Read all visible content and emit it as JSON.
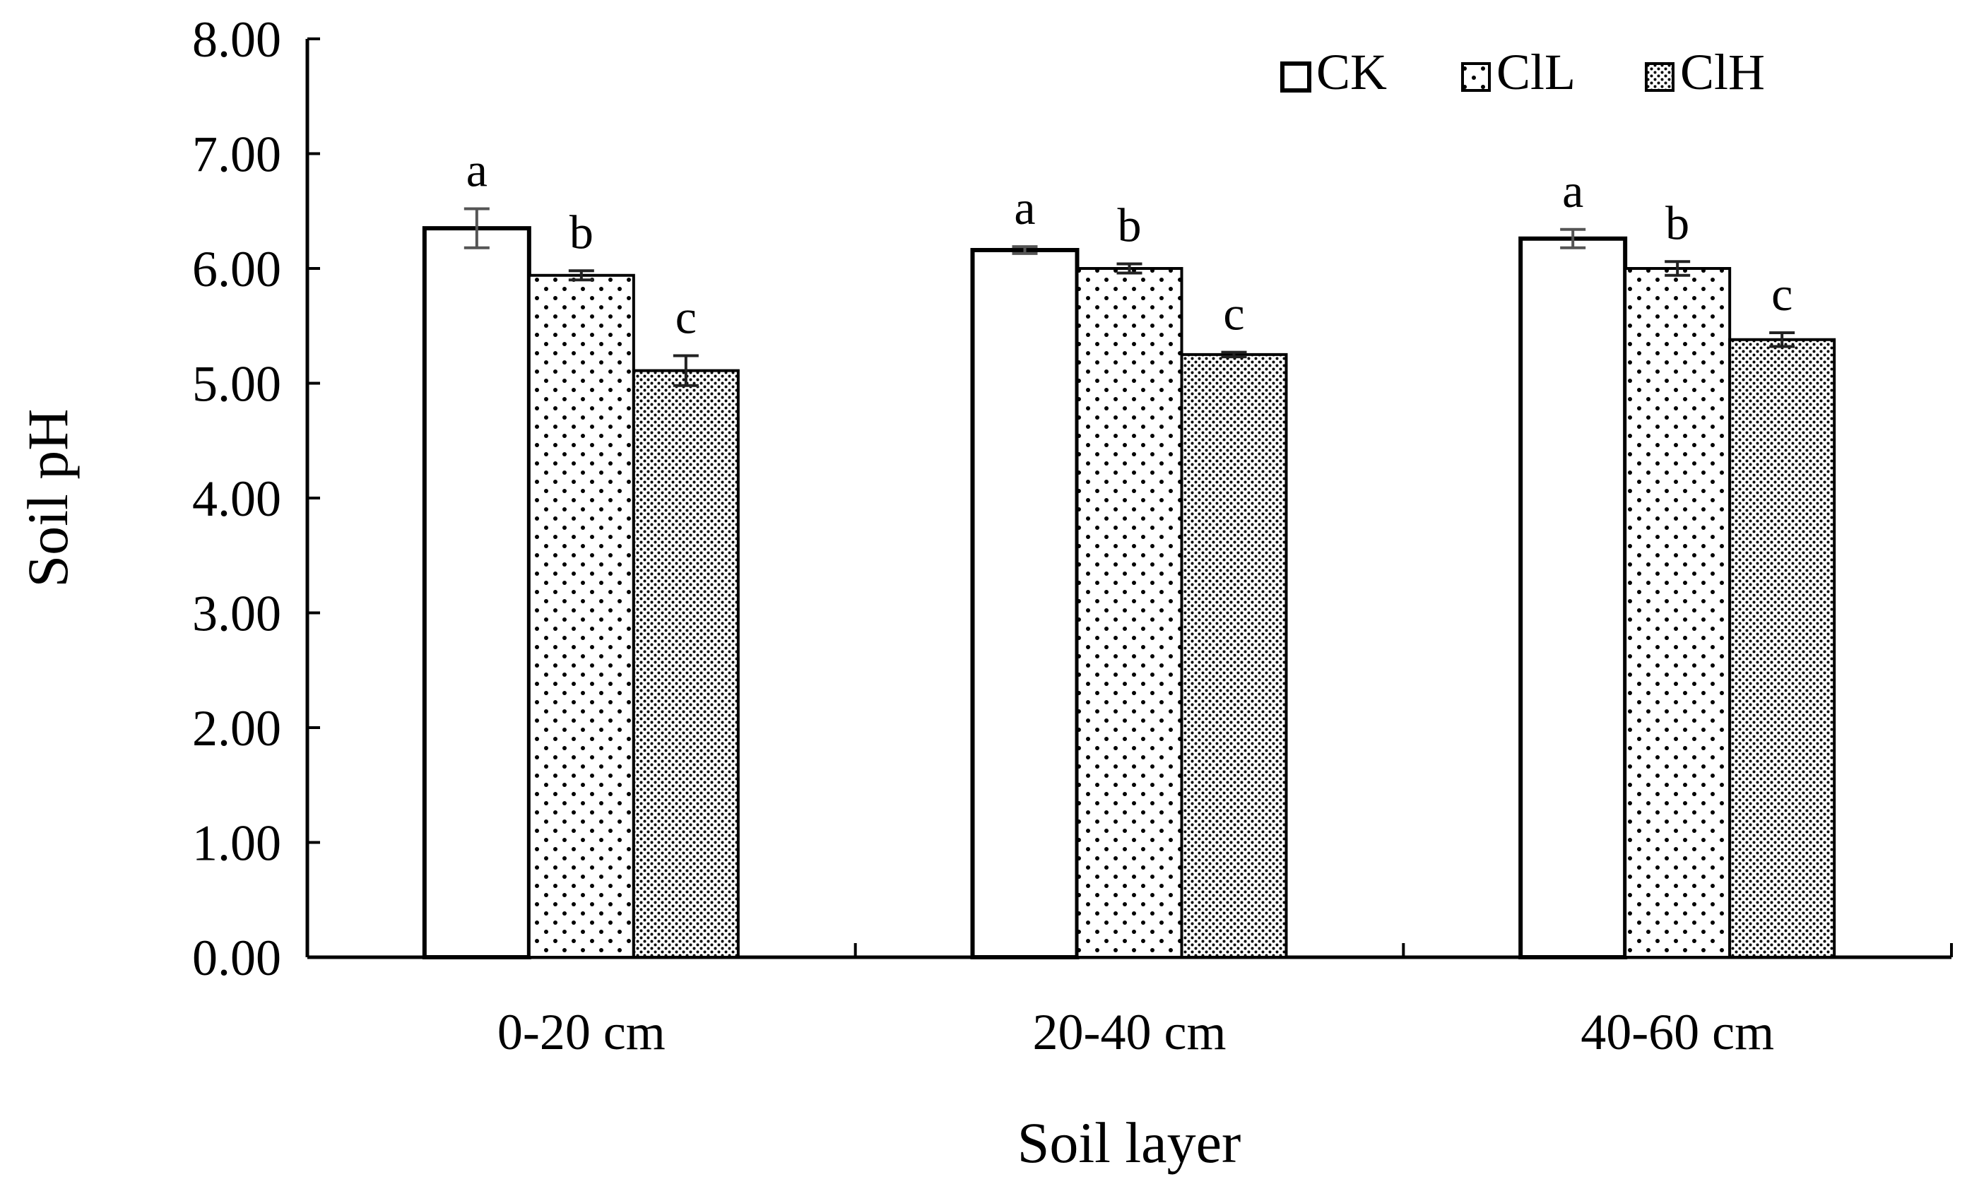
{
  "chart_data": {
    "type": "bar",
    "xlabel": "Soil layer",
    "ylabel": "Soil pH",
    "ylim": [
      0,
      8
    ],
    "yticks": [
      "0.00",
      "1.00",
      "2.00",
      "3.00",
      "4.00",
      "5.00",
      "6.00",
      "7.00",
      "8.00"
    ],
    "categories": [
      "0-20 cm",
      "20-40 cm",
      "40-60 cm"
    ],
    "grid": false,
    "legend_position": "top-right",
    "series": [
      {
        "name": "CK",
        "pattern": "none",
        "values": [
          6.35,
          6.16,
          6.26
        ],
        "errors": [
          0.17,
          0.03,
          0.08
        ],
        "labels": [
          "a",
          "a",
          "a"
        ]
      },
      {
        "name": "ClL",
        "pattern": "sparse-dots",
        "values": [
          5.94,
          6.0,
          6.0
        ],
        "errors": [
          0.04,
          0.04,
          0.06
        ],
        "labels": [
          "b",
          "b",
          "b"
        ]
      },
      {
        "name": "ClH",
        "pattern": "dense-dots",
        "values": [
          5.11,
          5.25,
          5.38
        ],
        "errors": [
          0.13,
          0.02,
          0.06
        ],
        "labels": [
          "c",
          "c",
          "c"
        ]
      }
    ]
  }
}
